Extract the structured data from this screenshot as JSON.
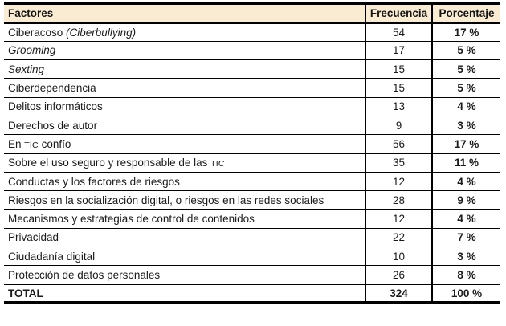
{
  "table": {
    "header": {
      "factores": "Factores",
      "frecuencia": "Frecuencia",
      "porcentaje": "Porcentaje"
    },
    "rows": [
      {
        "factor": [
          {
            "t": "Ciberacoso ",
            "s": "normal"
          },
          {
            "t": "(Ciberbullying)",
            "s": "italic"
          }
        ],
        "frecuencia": "54",
        "porcentaje": "17 %"
      },
      {
        "factor": [
          {
            "t": "Grooming",
            "s": "italic"
          }
        ],
        "frecuencia": "17",
        "porcentaje": "5 %"
      },
      {
        "factor": [
          {
            "t": "Sexting",
            "s": "italic"
          }
        ],
        "frecuencia": "15",
        "porcentaje": "5 %"
      },
      {
        "factor": [
          {
            "t": "Ciberdependencia",
            "s": "normal"
          }
        ],
        "frecuencia": "15",
        "porcentaje": "5 %"
      },
      {
        "factor": [
          {
            "t": "Delitos informáticos",
            "s": "normal"
          }
        ],
        "frecuencia": "13",
        "porcentaje": "4 %"
      },
      {
        "factor": [
          {
            "t": "Derechos de autor",
            "s": "normal"
          }
        ],
        "frecuencia": "9",
        "porcentaje": "3 %"
      },
      {
        "factor": [
          {
            "t": "En ",
            "s": "normal"
          },
          {
            "t": "tic",
            "s": "smallcaps"
          },
          {
            "t": " confío",
            "s": "normal"
          }
        ],
        "frecuencia": "56",
        "porcentaje": "17 %"
      },
      {
        "factor": [
          {
            "t": "Sobre el uso seguro y responsable de las ",
            "s": "normal"
          },
          {
            "t": "tic",
            "s": "smallcaps"
          }
        ],
        "frecuencia": "35",
        "porcentaje": "11 %"
      },
      {
        "factor": [
          {
            "t": "Conductas y los factores de riesgos",
            "s": "normal"
          }
        ],
        "frecuencia": "12",
        "porcentaje": "4 %"
      },
      {
        "factor": [
          {
            "t": "Riesgos en la socialización digital, o riesgos en las redes sociales",
            "s": "normal"
          }
        ],
        "frecuencia": "28",
        "porcentaje": "9 %"
      },
      {
        "factor": [
          {
            "t": "Mecanismos y estrategias de control de contenidos",
            "s": "normal"
          }
        ],
        "frecuencia": "12",
        "porcentaje": "4 %"
      },
      {
        "factor": [
          {
            "t": "Privacidad",
            "s": "normal"
          }
        ],
        "frecuencia": "22",
        "porcentaje": "7 %"
      },
      {
        "factor": [
          {
            "t": "Ciudadanía digital",
            "s": "normal"
          }
        ],
        "frecuencia": "10",
        "porcentaje": "3 %"
      },
      {
        "factor": [
          {
            "t": "Protección de datos personales",
            "s": "normal"
          }
        ],
        "frecuencia": "26",
        "porcentaje": "8 %"
      }
    ],
    "total": {
      "label": "TOTAL",
      "frecuencia": "324",
      "porcentaje": "100 %"
    }
  },
  "colors": {
    "header_bg": "#faecd2",
    "border": "#000000",
    "text": "#1a1a1a"
  }
}
